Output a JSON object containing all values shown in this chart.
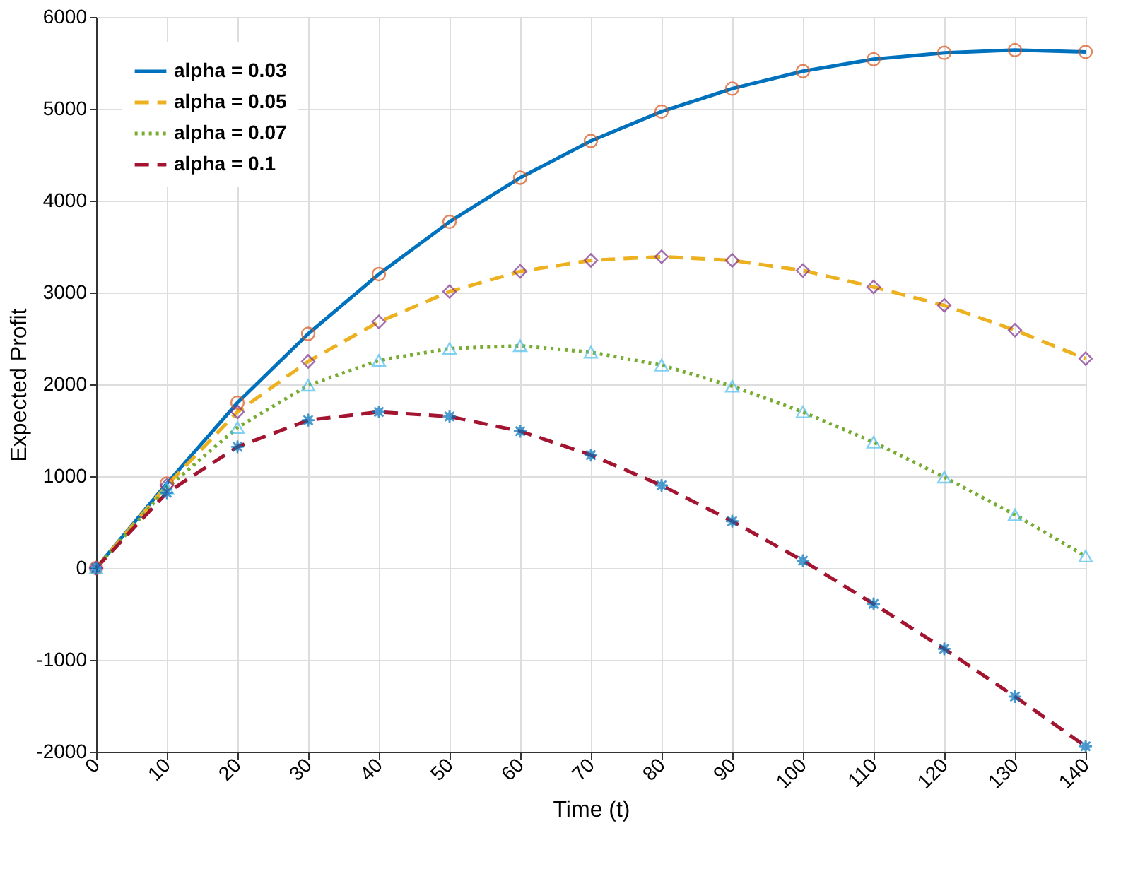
{
  "chart_data": {
    "type": "line",
    "xlabel": "Time (t)",
    "ylabel": "Expected Profit",
    "x": [
      0,
      10,
      20,
      30,
      40,
      50,
      60,
      70,
      80,
      90,
      100,
      110,
      120,
      130,
      140
    ],
    "xlim": [
      0,
      140
    ],
    "xticks": [
      0,
      10,
      20,
      30,
      40,
      50,
      60,
      70,
      80,
      90,
      100,
      110,
      120,
      130,
      140
    ],
    "ylim": [
      -2000,
      6000
    ],
    "yticks": [
      -2000,
      -1000,
      0,
      1000,
      2000,
      3000,
      4000,
      5000,
      6000
    ],
    "grid": true,
    "legend": "top left",
    "series": [
      {
        "name": "alpha = 0.03",
        "color": "#0072bd",
        "line_style": "solid",
        "marker": "none",
        "values": [
          0,
          920,
          1800,
          2550,
          3200,
          3770,
          4250,
          4650,
          4970,
          5220,
          5410,
          5540,
          5610,
          5640,
          5620
        ]
      },
      {
        "name": "alpha = 0.05",
        "color": "#edb120",
        "line_style": "dashed",
        "marker": "none",
        "values": [
          0,
          900,
          1700,
          2250,
          2680,
          3010,
          3230,
          3350,
          3390,
          3350,
          3240,
          3060,
          2860,
          2590,
          2280
        ]
      },
      {
        "name": "alpha = 0.07",
        "color": "#77ac30",
        "line_style": "dotted",
        "marker": "none",
        "values": [
          0,
          870,
          1530,
          1990,
          2260,
          2390,
          2420,
          2350,
          2210,
          1980,
          1700,
          1370,
          990,
          580,
          130
        ]
      },
      {
        "name": "alpha = 0.1",
        "color": "#a2142f",
        "line_style": "dashed",
        "marker": "none",
        "values": [
          0,
          820,
          1320,
          1610,
          1700,
          1650,
          1490,
          1230,
          900,
          510,
          80,
          -390,
          -880,
          -1400,
          -1940
        ]
      },
      {
        "type": "scatter",
        "color": "#d95319",
        "marker": "circle",
        "values": [
          0,
          920,
          1800,
          2550,
          3200,
          3770,
          4250,
          4650,
          4970,
          5220,
          5410,
          5540,
          5610,
          5640,
          5620
        ]
      },
      {
        "type": "scatter",
        "color": "#7e2f8e",
        "marker": "diamond",
        "values": [
          0,
          900,
          1700,
          2250,
          2680,
          3010,
          3230,
          3350,
          3390,
          3350,
          3240,
          3060,
          2860,
          2590,
          2280
        ]
      },
      {
        "type": "scatter",
        "color": "#4dbeee",
        "marker": "triangle",
        "values": [
          0,
          870,
          1530,
          1990,
          2260,
          2390,
          2420,
          2350,
          2210,
          1980,
          1700,
          1370,
          990,
          580,
          130
        ]
      },
      {
        "type": "scatter",
        "color": "#0072bd",
        "marker": "star",
        "values": [
          0,
          820,
          1320,
          1610,
          1700,
          1650,
          1490,
          1230,
          900,
          510,
          80,
          -390,
          -880,
          -1400,
          -1940
        ]
      }
    ]
  }
}
